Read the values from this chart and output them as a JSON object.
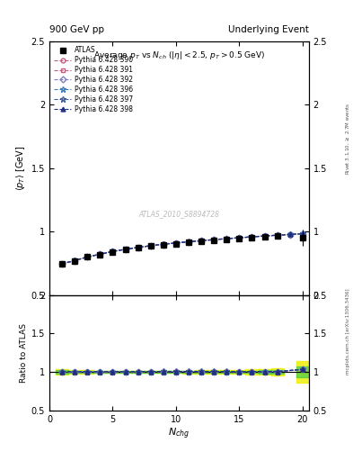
{
  "title_main": "Average $p_{T}$ vs $N_{ch}$ ($|\\eta| < 2.5$, $p_{T} > 0.5$ GeV)",
  "top_left_label": "900 GeV pp",
  "top_right_label": "Underlying Event",
  "ylabel_main": "$\\langle p_{T} \\rangle$ [GeV]",
  "ylabel_ratio": "Ratio to ATLAS",
  "xlabel": "$N_{chg}$",
  "watermark": "ATLAS_2010_S8894728",
  "right_label_top": "Rivet 3.1.10, $\\geq$ 2.7M events",
  "right_label_bottom": "mcplots.cern.ch [arXiv:1306.3436]",
  "atlas_x": [
    1,
    2,
    3,
    4,
    5,
    6,
    7,
    8,
    9,
    10,
    11,
    12,
    13,
    14,
    15,
    16,
    17,
    18,
    20
  ],
  "atlas_y": [
    0.745,
    0.77,
    0.8,
    0.82,
    0.84,
    0.858,
    0.872,
    0.885,
    0.896,
    0.906,
    0.915,
    0.924,
    0.932,
    0.94,
    0.948,
    0.955,
    0.962,
    0.968,
    0.954
  ],
  "atlas_yerr": [
    0.015,
    0.01,
    0.008,
    0.007,
    0.006,
    0.006,
    0.006,
    0.006,
    0.007,
    0.007,
    0.008,
    0.009,
    0.01,
    0.011,
    0.013,
    0.015,
    0.018,
    0.022,
    0.065
  ],
  "pythia_x": [
    1,
    2,
    3,
    4,
    5,
    6,
    7,
    8,
    9,
    10,
    11,
    12,
    13,
    14,
    15,
    16,
    17,
    18,
    19,
    20
  ],
  "series": [
    {
      "label": "Pythia 6.428 390",
      "color": "#c06080",
      "linestyle": "--",
      "marker": "o",
      "markerfacecolor": "none",
      "y": [
        0.745,
        0.77,
        0.8,
        0.82,
        0.843,
        0.86,
        0.875,
        0.888,
        0.9,
        0.91,
        0.919,
        0.928,
        0.936,
        0.944,
        0.951,
        0.958,
        0.965,
        0.971,
        0.977,
        0.983
      ]
    },
    {
      "label": "Pythia 6.428 391",
      "color": "#c06080",
      "linestyle": "--",
      "marker": "s",
      "markerfacecolor": "none",
      "y": [
        0.748,
        0.772,
        0.801,
        0.822,
        0.844,
        0.861,
        0.876,
        0.889,
        0.901,
        0.911,
        0.92,
        0.929,
        0.937,
        0.945,
        0.952,
        0.959,
        0.966,
        0.972,
        0.978,
        0.984
      ]
    },
    {
      "label": "Pythia 6.428 392",
      "color": "#8080c0",
      "linestyle": "--",
      "marker": "D",
      "markerfacecolor": "none",
      "y": [
        0.746,
        0.771,
        0.8,
        0.821,
        0.843,
        0.86,
        0.875,
        0.888,
        0.899,
        0.91,
        0.919,
        0.928,
        0.936,
        0.944,
        0.951,
        0.958,
        0.965,
        0.971,
        0.977,
        0.983
      ]
    },
    {
      "label": "Pythia 6.428 396",
      "color": "#4080c0",
      "linestyle": "--",
      "marker": "*",
      "markerfacecolor": "none",
      "y": [
        0.747,
        0.772,
        0.801,
        0.822,
        0.844,
        0.861,
        0.876,
        0.889,
        0.901,
        0.911,
        0.92,
        0.929,
        0.937,
        0.945,
        0.952,
        0.959,
        0.966,
        0.972,
        0.978,
        0.984
      ]
    },
    {
      "label": "Pythia 6.428 397",
      "color": "#4060a0",
      "linestyle": "--",
      "marker": "*",
      "markerfacecolor": "none",
      "y": [
        0.748,
        0.773,
        0.802,
        0.823,
        0.845,
        0.862,
        0.877,
        0.89,
        0.902,
        0.912,
        0.921,
        0.93,
        0.938,
        0.946,
        0.953,
        0.96,
        0.967,
        0.973,
        0.979,
        0.985
      ]
    },
    {
      "label": "Pythia 6.428 398",
      "color": "#203080",
      "linestyle": "--",
      "marker": "^",
      "markerfacecolor": "#203080",
      "y": [
        0.747,
        0.772,
        0.801,
        0.822,
        0.844,
        0.861,
        0.876,
        0.889,
        0.901,
        0.911,
        0.92,
        0.929,
        0.937,
        0.945,
        0.952,
        0.959,
        0.966,
        0.972,
        0.978,
        0.984
      ]
    }
  ],
  "ylim_main": [
    0.5,
    2.5
  ],
  "ylim_ratio": [
    0.5,
    2.0
  ],
  "xlim": [
    0,
    20.5
  ],
  "xticks": [
    0,
    5,
    10,
    15,
    20
  ],
  "yticks_main": [
    0.5,
    1.0,
    1.5,
    2.0,
    2.5
  ],
  "yticks_ratio": [
    0.5,
    1.0,
    1.5,
    2.0
  ]
}
